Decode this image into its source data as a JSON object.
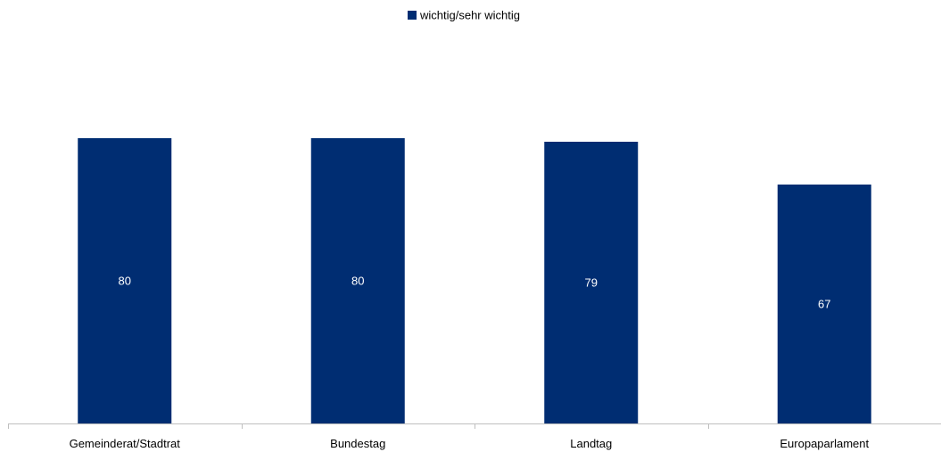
{
  "chart_data": {
    "type": "bar",
    "categories": [
      "Gemeinderat/Stadtrat",
      "Bundestag",
      "Landtag",
      "Europaparlament"
    ],
    "series": [
      {
        "name": "wichtig/sehr wichtig",
        "values": [
          80,
          80,
          79,
          67
        ],
        "color": "#002D72"
      }
    ],
    "ylim": [
      0,
      100
    ],
    "grid": false,
    "legend": "top-center",
    "data_labels": true
  }
}
